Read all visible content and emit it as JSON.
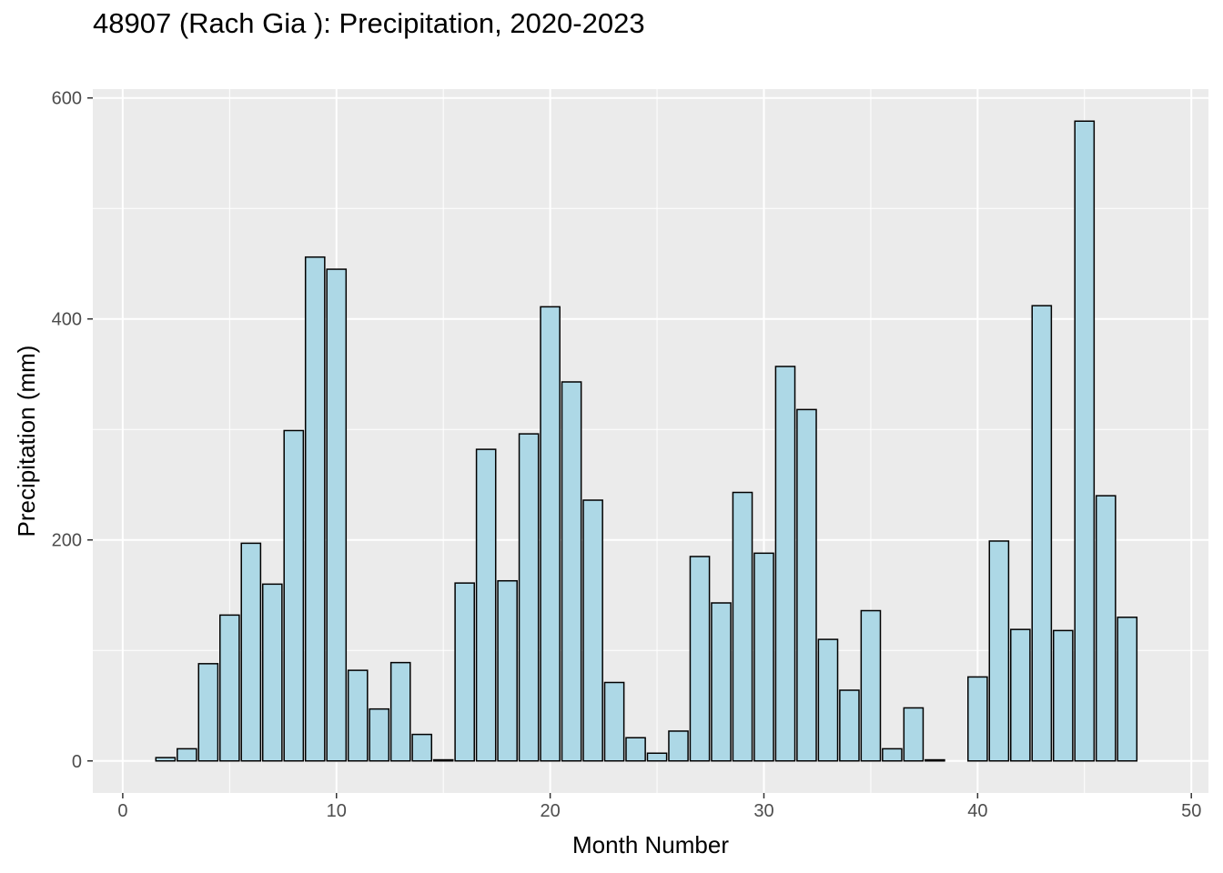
{
  "chart_data": {
    "type": "bar",
    "title": "48907 (Rach Gia ): Precipitation, 2020-2023",
    "xlabel": "Month Number",
    "ylabel": "Precipitation (mm)",
    "xlim": [
      -1.4,
      50.8
    ],
    "ylim": [
      -29,
      608
    ],
    "xticks": [
      0,
      10,
      20,
      30,
      40,
      50
    ],
    "yticks": [
      0,
      200,
      400,
      600
    ],
    "grid": true,
    "legend": "none",
    "bar_fill": "#add8e6",
    "bar_stroke": "#000000",
    "panel_bg": "#ebebeb",
    "x": [
      1,
      2,
      3,
      4,
      5,
      6,
      7,
      8,
      9,
      10,
      11,
      12,
      13,
      14,
      15,
      16,
      17,
      18,
      19,
      20,
      21,
      22,
      23,
      24,
      25,
      26,
      27,
      28,
      29,
      30,
      31,
      32,
      33,
      34,
      35,
      36,
      37,
      38,
      39,
      40,
      41,
      42,
      43,
      44,
      45,
      46,
      47,
      48
    ],
    "values": [
      0,
      3,
      11,
      88,
      132,
      197,
      160,
      299,
      456,
      445,
      82,
      47,
      89,
      24,
      1,
      161,
      282,
      163,
      296,
      411,
      343,
      236,
      71,
      21,
      7,
      27,
      185,
      143,
      243,
      188,
      357,
      318,
      110,
      64,
      136,
      11,
      48,
      1,
      0,
      76,
      199,
      119,
      412,
      118,
      579,
      240,
      130,
      0
    ]
  }
}
